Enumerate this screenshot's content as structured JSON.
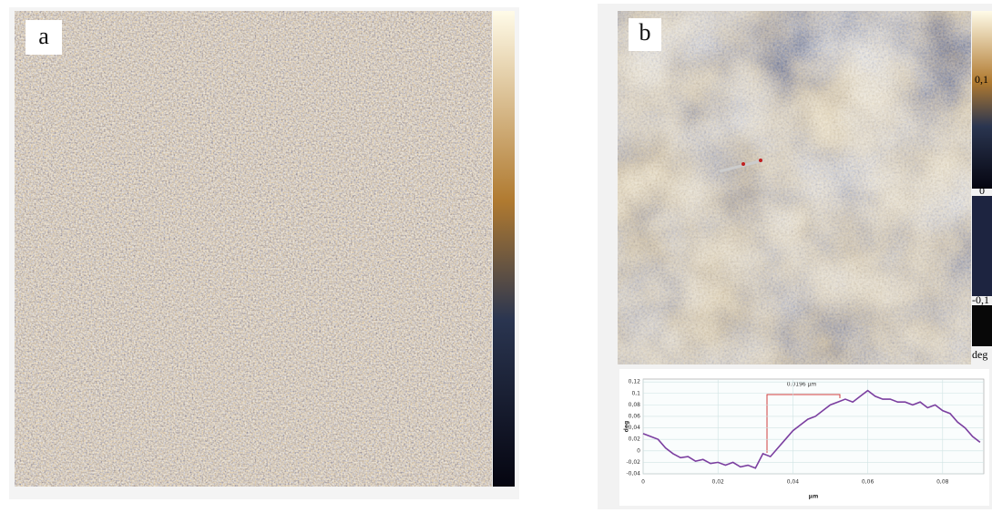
{
  "panels": [
    {
      "label": "a"
    },
    {
      "label": "b",
      "colorbar_labels": [
        "0,1",
        "0",
        "-0,1",
        "deg"
      ]
    }
  ],
  "chart_data": {
    "type": "line",
    "annotation": "0.0196 μm",
    "y_label": "deg",
    "x_label": "μm",
    "color": "#7b3fa0",
    "x": [
      0,
      0.002,
      0.004,
      0.006,
      0.008,
      0.01,
      0.012,
      0.014,
      0.016,
      0.018,
      0.02,
      0.022,
      0.024,
      0.026,
      0.028,
      0.03,
      0.032,
      0.034,
      0.036,
      0.038,
      0.04,
      0.042,
      0.044,
      0.046,
      0.048,
      0.05,
      0.052,
      0.054,
      0.056,
      0.058,
      0.06,
      0.062,
      0.064,
      0.066,
      0.068,
      0.07,
      0.072,
      0.074,
      0.076,
      0.078,
      0.08,
      0.082,
      0.084,
      0.086,
      0.088,
      0.09
    ],
    "values": [
      0.03,
      0.025,
      0.02,
      0.005,
      -0.005,
      -0.012,
      -0.01,
      -0.018,
      -0.015,
      -0.022,
      -0.02,
      -0.025,
      -0.02,
      -0.028,
      -0.025,
      -0.03,
      -0.005,
      -0.01,
      0.005,
      0.02,
      0.035,
      0.045,
      0.055,
      0.06,
      0.07,
      0.08,
      0.085,
      0.09,
      0.085,
      0.095,
      0.105,
      0.095,
      0.09,
      0.09,
      0.085,
      0.085,
      0.08,
      0.085,
      0.075,
      0.08,
      0.07,
      0.065,
      0.05,
      0.04,
      0.025,
      0.015
    ],
    "xlim": [
      0,
      0.091
    ],
    "ylim": [
      -0.04,
      0.125
    ],
    "xticks": [
      0,
      {
        "value": 0.02,
        "label": "0,02"
      },
      {
        "value": 0.04,
        "label": "0,04"
      },
      {
        "value": 0.06,
        "label": "0,06"
      },
      {
        "value": 0.08,
        "label": "0,08"
      }
    ],
    "yticks": [
      {
        "value": -0.04,
        "label": "-0,04"
      },
      {
        "value": -0.02,
        "label": "-0,02"
      },
      0,
      {
        "value": 0.02,
        "label": "0,02"
      },
      {
        "value": 0.04,
        "label": "0,04"
      },
      {
        "value": 0.06,
        "label": "0,06"
      },
      {
        "value": 0.08,
        "label": "0,08"
      },
      {
        "value": 0.1,
        "label": "0,1"
      },
      {
        "value": 0.12,
        "label": "0,12"
      }
    ],
    "grid": true
  }
}
